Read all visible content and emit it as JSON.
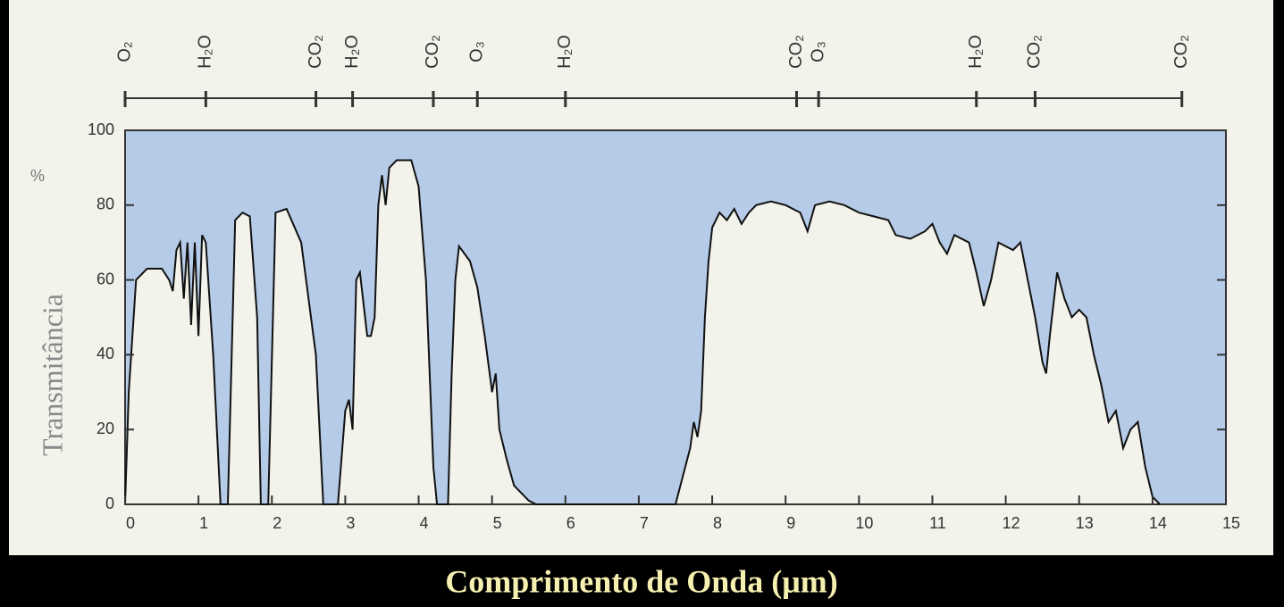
{
  "chart_data": {
    "type": "line",
    "x_label": "Comprimento de Onda (μm)",
    "y_label": "Transmitância",
    "y_unit": "%",
    "color": "#111111",
    "fill_color": "#a9c3e8",
    "xlim": [
      0,
      15
    ],
    "ylim": [
      0,
      100
    ],
    "xticks": [
      0,
      1,
      2,
      3,
      4,
      5,
      6,
      7,
      8,
      9,
      10,
      11,
      12,
      13,
      14,
      15
    ],
    "yticks": [
      0,
      20,
      40,
      60,
      80,
      100
    ],
    "x": [
      0,
      0.05,
      0.15,
      0.3,
      0.5,
      0.6,
      0.65,
      0.7,
      0.75,
      0.8,
      0.85,
      0.9,
      0.95,
      1.0,
      1.05,
      1.1,
      1.2,
      1.3,
      1.4,
      1.5,
      1.6,
      1.7,
      1.8,
      1.85,
      1.95,
      2.05,
      2.2,
      2.4,
      2.6,
      2.7,
      2.9,
      3.0,
      3.05,
      3.1,
      3.15,
      3.2,
      3.3,
      3.35,
      3.4,
      3.45,
      3.5,
      3.55,
      3.6,
      3.7,
      3.9,
      4.0,
      4.1,
      4.2,
      4.25,
      4.4,
      4.45,
      4.5,
      4.55,
      4.7,
      4.8,
      4.9,
      5.0,
      5.05,
      5.1,
      5.2,
      5.3,
      5.5,
      5.6,
      7.5,
      7.7,
      7.75,
      7.8,
      7.85,
      7.9,
      7.95,
      8.0,
      8.1,
      8.2,
      8.3,
      8.4,
      8.5,
      8.6,
      8.8,
      9.0,
      9.2,
      9.3,
      9.4,
      9.6,
      9.8,
      10.0,
      10.2,
      10.4,
      10.5,
      10.7,
      10.9,
      11.0,
      11.1,
      11.2,
      11.3,
      11.5,
      11.6,
      11.7,
      11.8,
      11.9,
      12.1,
      12.2,
      12.3,
      12.4,
      12.5,
      12.55,
      12.6,
      12.7,
      12.8,
      12.9,
      13.0,
      13.1,
      13.2,
      13.3,
      13.4,
      13.5,
      13.6,
      13.7,
      13.8,
      13.9,
      14.0,
      14.1
    ],
    "values": [
      0,
      30,
      60,
      63,
      63,
      60,
      57,
      68,
      70,
      55,
      70,
      48,
      70,
      45,
      72,
      70,
      40,
      0,
      0,
      76,
      78,
      77,
      50,
      0,
      0,
      78,
      79,
      70,
      40,
      0,
      0,
      25,
      28,
      20,
      60,
      62,
      45,
      45,
      50,
      80,
      88,
      80,
      90,
      92,
      92,
      85,
      60,
      10,
      0,
      0,
      35,
      60,
      69,
      65,
      58,
      45,
      30,
      35,
      20,
      12,
      5,
      1,
      0,
      0,
      15,
      22,
      18,
      25,
      50,
      65,
      74,
      78,
      76,
      79,
      75,
      78,
      80,
      81,
      80,
      78,
      73,
      80,
      81,
      80,
      78,
      77,
      76,
      72,
      71,
      73,
      75,
      70,
      67,
      72,
      70,
      62,
      53,
      60,
      70,
      68,
      70,
      60,
      50,
      38,
      35,
      45,
      62,
      55,
      50,
      52,
      50,
      40,
      32,
      22,
      25,
      15,
      20,
      22,
      10,
      2,
      0
    ],
    "annotations": [
      {
        "text": "O₂",
        "x": 0.0
      },
      {
        "text": "H₂O",
        "x": 1.1
      },
      {
        "text": "CO₂",
        "x": 2.6
      },
      {
        "text": "H₂O",
        "x": 3.1
      },
      {
        "text": "CO₂",
        "x": 4.2
      },
      {
        "text": "O₃",
        "x": 4.8
      },
      {
        "text": "H₂O",
        "x": 6.0
      },
      {
        "text": "CO₂",
        "x": 9.15
      },
      {
        "text": "O₃",
        "x": 9.45
      },
      {
        "text": "H₂O",
        "x": 11.6
      },
      {
        "text": "CO₂",
        "x": 12.4
      },
      {
        "text": "CO₂",
        "x": 14.4
      }
    ]
  }
}
